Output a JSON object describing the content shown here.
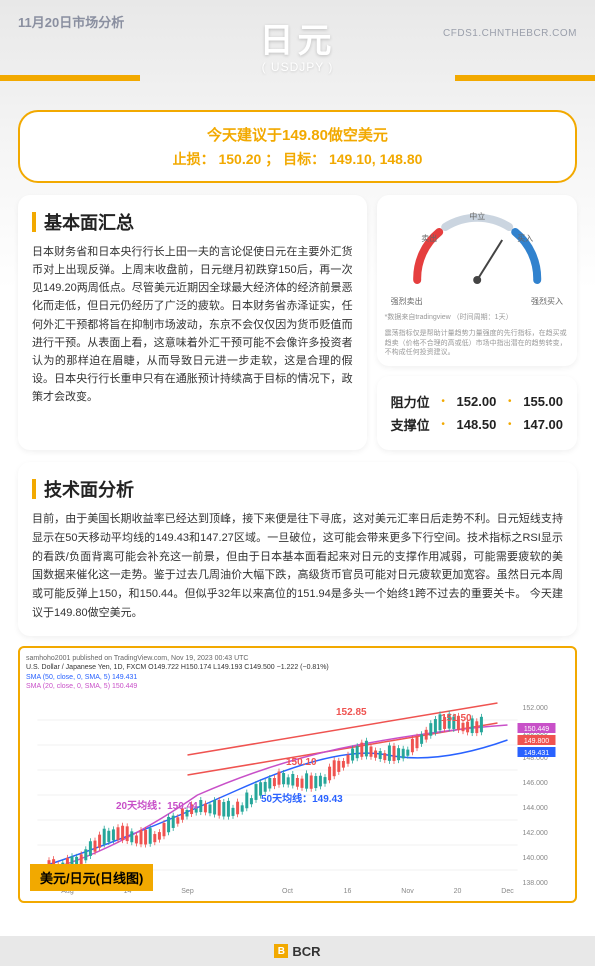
{
  "header": {
    "date": "11月20日市场分析",
    "title": "日元",
    "subtitle": "( USDJPY )",
    "url": "CFDS1.CHNTHEBCR.COM"
  },
  "recommendation": {
    "line1": "今天建议于149.80做空美元",
    "line2": "止损： 150.20 ； 目标： 149.10, 148.80"
  },
  "fundamental": {
    "title": "基本面汇总",
    "text": "日本财务省和日本央行行长上田一夫的言论促使日元在主要外汇货币对上出现反弹。上周末收盘前，日元继月初跌穿150后，再一次见149.20两周低点。尽管美元近期因全球最大经济体的经济前景恶化而走低，但日元仍经历了广泛的疲软。日本财务省赤泽证实，任何外汇干预都将旨在抑制市场波动，东京不会仅仅因为货币贬值而进行干预。从表面上看，这意味着外汇干预可能不会像许多投资者认为的那样迫在眉睫，从而导致日元进一步走软，这是合理的假设。日本央行行长重申只有在通胀预计持续高于目标的情况下，政策才会改变。"
  },
  "gauge": {
    "labels": {
      "strong_sell": "强烈卖出",
      "sell": "卖出",
      "neutral": "中立",
      "buy": "买入",
      "strong_buy": "强烈买入"
    },
    "source_note": "*数据来自tradingview （时间周期：1天）",
    "disclaimer": "震荡指标仅是帮助计量趋势力量强度的先行指标，在趋买或趋卖（价格不合理的高或低）市场中指出潜在的趋势转变，不构成任何投资建议。",
    "colors": {
      "sell": "#e53e3e",
      "neutral": "#cbd5e0",
      "buy": "#3182ce"
    },
    "needle_angle": 30
  },
  "levels": {
    "resistance_label": "阻力位",
    "support_label": "支撑位",
    "resistance": [
      "152.00",
      "155.00"
    ],
    "support": [
      "148.50",
      "147.00"
    ]
  },
  "technical": {
    "title": "技术面分析",
    "text": "目前，由于美国长期收益率已经达到顶峰，接下来便是往下寻底，这对美元汇率日后走势不利。日元短线支持显示在50天移动平均线的149.43和147.27区域。一旦破位，这可能会带来更多下行空间。技术指标之RSI显示的看跌/负面背离可能会补充这一前景，但由于日本基本面看起来对日元的支撑作用减弱，可能需要疲软的美国数据来催化这一走势。鉴于过去几周油价大幅下跌，高级货币官员可能对日元疲软更加宽容。虽然日元本周或可能反弹上150，和150.44。但似乎32年以来高位的151.94是多头一个始终1跨不过去的重要关卡。\n今天建议于149.80做空美元。"
  },
  "chart": {
    "meta_line1": "samhoho2001 published on TradingView.com, Nov 19, 2023 00:43 UTC",
    "meta_line2": "U.S. Dollar / Japanese Yen, 1D, FXCM O149.722 H150.174 L149.193 C149.500 −1.222 (−0.81%)",
    "meta_line3": "SMA (50, close, 0, SMA, 5) 149.431",
    "meta_line4": "SMA (20, close, 0, SMA, 5) 150.449",
    "title_badge": "美元/日元(日线图)",
    "annotations": {
      "top_channel": "152.85",
      "right_val": "151.50",
      "bottom_channel": "150.10",
      "ma20": "20天均线：150.44",
      "ma50": "50天均线：149.43",
      "price_tags": [
        "150.449",
        "149.800",
        "149.431"
      ]
    },
    "x_labels": [
      "Aug",
      "14",
      "Sep",
      "Oct",
      "16",
      "Nov",
      "20",
      "Dec"
    ],
    "y_labels": [
      "152.000",
      "150.000",
      "148.000",
      "146.000",
      "144.000",
      "142.000",
      "140.000",
      "138.000"
    ],
    "y_min": 138,
    "y_max": 153,
    "colors": {
      "up_candle": "#26a69a",
      "down_candle": "#ef5350",
      "ma20": "#c850c8",
      "ma50": "#2962ff",
      "channel": "#ef5350",
      "grid": "#f0f0f0"
    }
  },
  "footer": {
    "brand": "BCR"
  }
}
